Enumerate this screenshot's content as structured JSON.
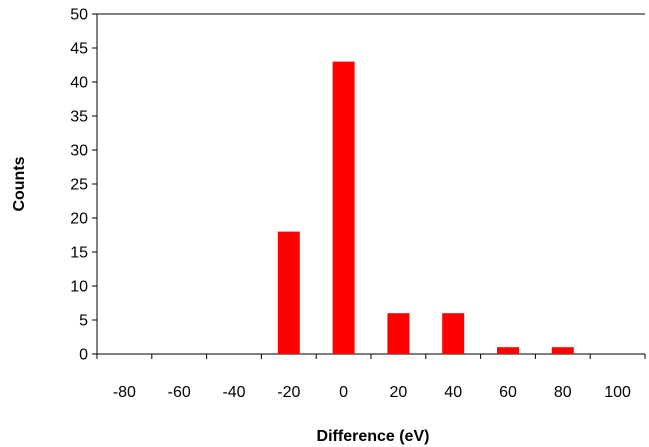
{
  "chart_data": {
    "type": "bar",
    "title": "",
    "xlabel": "Difference (eV)",
    "ylabel": "Counts",
    "categories": [
      "-80",
      "-60",
      "-40",
      "-20",
      "0",
      "20",
      "40",
      "60",
      "80",
      "100"
    ],
    "values": [
      0,
      0,
      0,
      18,
      43,
      6,
      6,
      1,
      1,
      0
    ],
    "ylim": [
      0,
      50
    ],
    "yticks": [
      "0",
      "5",
      "10",
      "15",
      "20",
      "25",
      "30",
      "35",
      "40",
      "45",
      "50"
    ],
    "grid": false,
    "legend": "none",
    "bar_color": "#ff0000"
  }
}
